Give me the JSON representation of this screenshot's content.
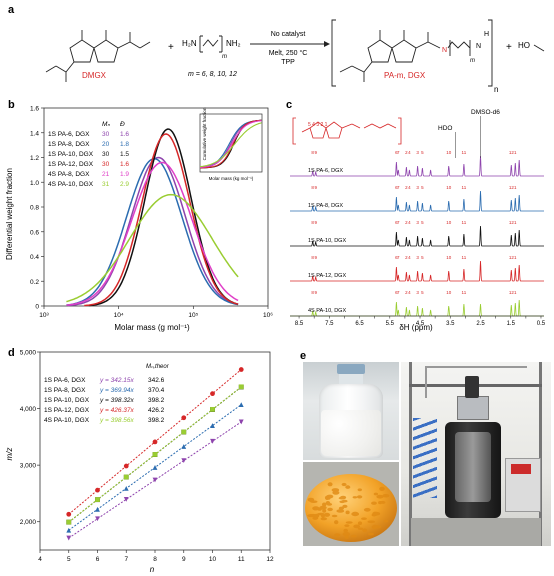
{
  "panels": {
    "a": "a",
    "b": "b",
    "c": "c",
    "d": "d",
    "e": "e"
  },
  "scheme": {
    "monomer_label": "DMGX",
    "plus1": "+",
    "diamine": "H₂N",
    "diamine_end": "NH₂",
    "diamine_sub": "m",
    "m_values": "m = 6, 8, 10, 12",
    "condition_top": "No catalyst",
    "condition_mid": "Melt, 250 °C",
    "condition_bottom": "TPP",
    "polymer_label": "PA-m, DGX",
    "polymer_n": "n",
    "plus2": "+",
    "methanol": "HO",
    "nh_h": "H",
    "n_h": "N",
    "sub_m": "m"
  },
  "chart_b": {
    "type": "line",
    "ylabel": "Differential weight fraction",
    "xlabel": "Molar mass (g mol⁻¹)",
    "xscale": "log",
    "xlim": [
      1000,
      1000000
    ],
    "ylim": [
      0,
      1.6
    ],
    "yticks": [
      "0",
      "0.2",
      "0.4",
      "0.6",
      "0.8",
      "1.0",
      "1.2",
      "1.4",
      "1.6"
    ],
    "xticks": [
      "10³",
      "10⁴",
      "10⁵",
      "10⁶"
    ],
    "legend_header_mn": "Mₙ",
    "legend_header_d": "Đ",
    "series": [
      {
        "name": "1S PA-6, DGX",
        "mn": "30",
        "d": "1.6",
        "color": "#8e44ad",
        "peak": 34000,
        "height": 1.2,
        "width": 0.36
      },
      {
        "name": "1S PA-8, DGX",
        "mn": "20",
        "d": "1.8",
        "color": "#2b6cb0",
        "peak": 30000,
        "height": 1.19,
        "width": 0.37
      },
      {
        "name": "1S PA-10, DGX",
        "mn": "30",
        "d": "1.5",
        "color": "#111111",
        "peak": 46000,
        "height": 1.43,
        "width": 0.31
      },
      {
        "name": "1S PA-12, DGX",
        "mn": "30",
        "d": "1.6",
        "color": "#d62728",
        "peak": 43000,
        "height": 1.39,
        "width": 0.32
      },
      {
        "name": "4S PA-8, DGX",
        "mn": "21",
        "d": "1.9",
        "color": "#e040c8",
        "peak": 38000,
        "height": 1.16,
        "width": 0.4
      },
      {
        "name": "4S PA-10, DGX",
        "mn": "31",
        "d": "2.9",
        "color": "#9acd32",
        "peak": 50000,
        "height": 0.9,
        "width": 0.55
      }
    ],
    "inset_ylabel": "Cumulative weight fraction",
    "inset_xlabel": "Molar mass (kg mol⁻¹)"
  },
  "chart_c": {
    "type": "line",
    "xlabel": "δH (ppm)",
    "xlim": [
      8.8,
      0.4
    ],
    "xticks": [
      "8.5",
      "8.0",
      "7.5",
      "7.0",
      "6.5",
      "6.0",
      "5.5",
      "5.0",
      "4.5",
      "4.0",
      "3.5",
      "3.0",
      "2.5",
      "2.0",
      "1.5",
      "1.0",
      "0.5"
    ],
    "solvent_label": "DMSO-d6",
    "hdo_label": "HDO",
    "series": [
      {
        "name": "1S PA-6, DGX",
        "color": "#8e44ad"
      },
      {
        "name": "1S PA-8, DGX",
        "color": "#2b6cb0"
      },
      {
        "name": "1S PA-10, DGX",
        "color": "#111111"
      },
      {
        "name": "1S PA-12, DGX",
        "color": "#d62728"
      },
      {
        "name": "4S PA-10, DGX",
        "color": "#9acd32"
      }
    ],
    "peaks_ppm": [
      8.05,
      7.95,
      5.28,
      5.22,
      4.95,
      4.85,
      4.58,
      4.42,
      4.15,
      3.55,
      3.05,
      2.5,
      1.48,
      1.35,
      1.22
    ],
    "peak_heights": [
      0.25,
      0.2,
      0.7,
      0.3,
      0.45,
      0.3,
      0.5,
      0.4,
      0.3,
      0.5,
      0.6,
      1.0,
      0.55,
      0.65,
      0.8
    ],
    "peak_labels": [
      "8",
      "9",
      "6",
      "7",
      "2",
      "4",
      "3",
      "5",
      "10",
      "11",
      "12",
      "1"
    ]
  },
  "chart_d": {
    "type": "scatter",
    "xlabel": "n",
    "ylabel": "m/z",
    "xlim": [
      4,
      12
    ],
    "ylim": [
      1500,
      5000
    ],
    "xticks": [
      "4",
      "5",
      "6",
      "7",
      "8",
      "9",
      "10",
      "11",
      "12"
    ],
    "yticks": [
      "2,000",
      "3,000",
      "4,000",
      "5,000"
    ],
    "header_mn": "Mₙ,theor",
    "x": [
      5,
      6,
      7,
      8,
      9,
      10,
      11
    ],
    "series": [
      {
        "name": "1S PA-6, DGX",
        "fit": "y = 342.15x",
        "mtheor": "342.6",
        "slope": 342.15,
        "offset": 0,
        "color": "#8e44ad",
        "marker": "tri-down"
      },
      {
        "name": "1S PA-8, DGX",
        "fit": "y = 369.94x",
        "mtheor": "370.4",
        "slope": 369.94,
        "offset": 0,
        "color": "#2b6cb0",
        "marker": "tri-up"
      },
      {
        "name": "1S PA-10, DGX",
        "fit": "y = 398.32x",
        "mtheor": "398.2",
        "slope": 398.32,
        "offset": 0,
        "color": "#111111",
        "marker": "square"
      },
      {
        "name": "1S PA-12, DGX",
        "fit": "y = 426.37x",
        "mtheor": "426.2",
        "slope": 426.37,
        "offset": 0,
        "color": "#d62728",
        "marker": "circle"
      },
      {
        "name": "4S PA-10, DGX",
        "fit": "y = 398.56x",
        "mtheor": "398.2",
        "slope": 398.56,
        "offset": 0,
        "color": "#9acd32",
        "marker": "square"
      }
    ]
  },
  "colors": {
    "accent_red": "#d62728"
  }
}
